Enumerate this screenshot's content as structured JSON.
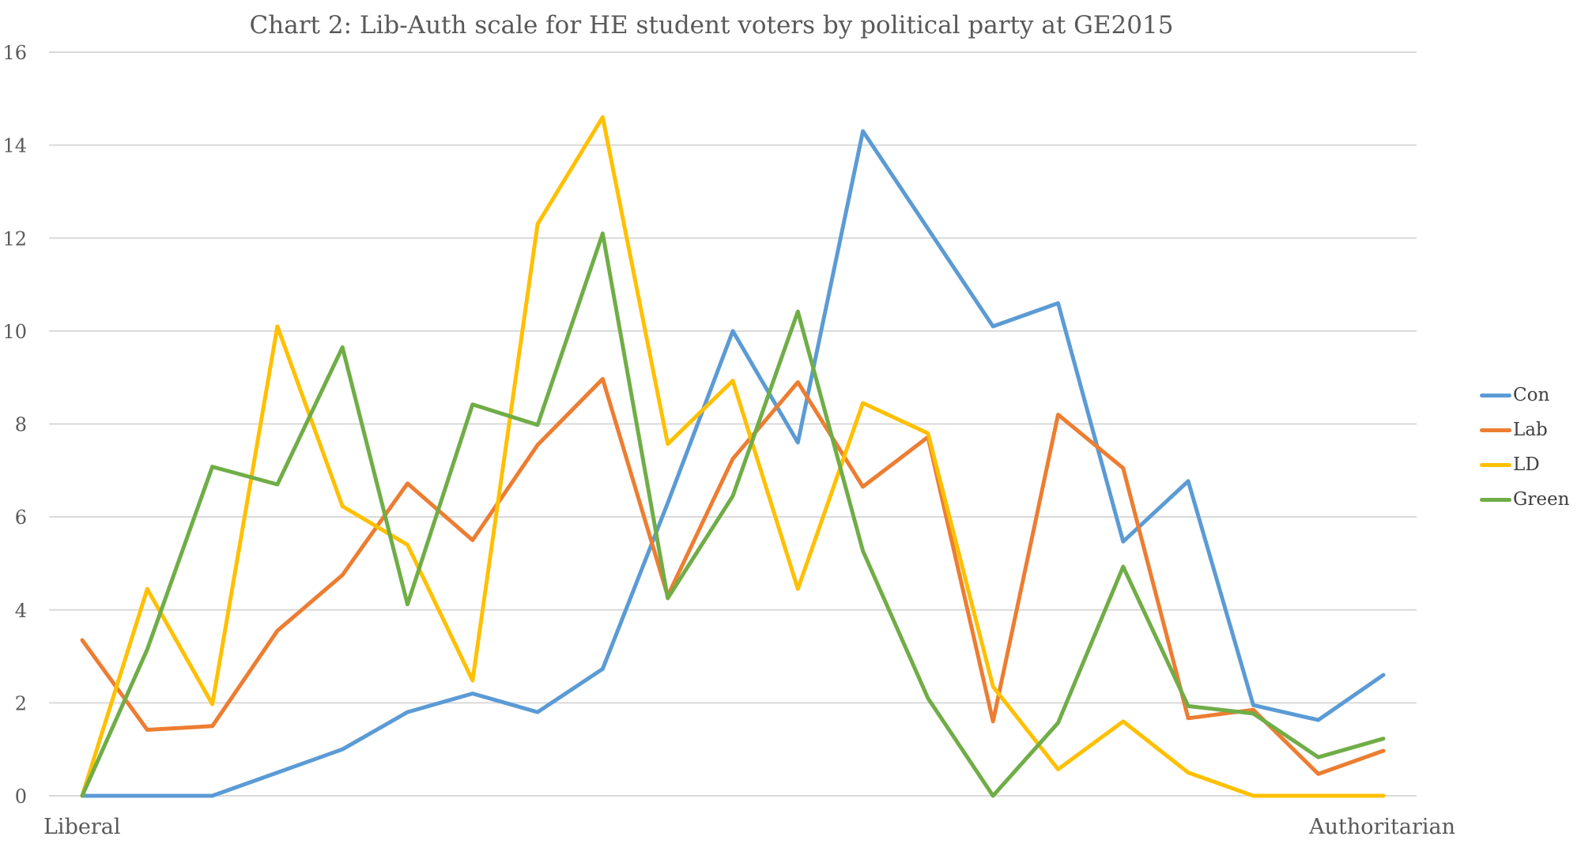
{
  "chart_data": {
    "type": "line",
    "title": "Chart 2: Lib-Auth scale for HE student voters by political party at GE2015",
    "xlabel": "",
    "ylabel": "",
    "x_axis_end_labels": {
      "left": "Liberal",
      "right": "Authoritarian"
    },
    "x": [
      1,
      2,
      3,
      4,
      5,
      6,
      7,
      8,
      9,
      10,
      11,
      12,
      13,
      14,
      15,
      16,
      17,
      18,
      19,
      20,
      21
    ],
    "ylim": [
      0,
      16
    ],
    "yticks": [
      0,
      2,
      4,
      6,
      8,
      10,
      12,
      14,
      16
    ],
    "grid": true,
    "legend_position": "right",
    "series": [
      {
        "name": "Con",
        "color": "#5B9BD5",
        "values": [
          0,
          0,
          0,
          0.5,
          1.0,
          1.8,
          2.2,
          1.8,
          2.73,
          6.3,
          10.0,
          7.6,
          14.3,
          12.2,
          10.1,
          10.6,
          5.47,
          6.77,
          1.95,
          1.63,
          2.6
        ]
      },
      {
        "name": "Lab",
        "color": "#ED7D31",
        "values": [
          3.35,
          1.42,
          1.5,
          3.55,
          4.75,
          6.72,
          5.5,
          7.55,
          8.97,
          4.3,
          7.25,
          8.9,
          6.65,
          7.72,
          1.6,
          8.2,
          7.05,
          1.67,
          1.85,
          0.47,
          0.97
        ]
      },
      {
        "name": "LD",
        "color": "#FFC000",
        "values": [
          0,
          4.45,
          1.97,
          10.1,
          6.23,
          5.4,
          2.48,
          12.3,
          14.6,
          7.57,
          8.93,
          4.45,
          8.45,
          7.8,
          2.35,
          0.57,
          1.6,
          0.5,
          0,
          0,
          0
        ]
      },
      {
        "name": "Green",
        "color": "#70AD47",
        "values": [
          0,
          3.15,
          7.08,
          6.7,
          9.65,
          4.12,
          8.42,
          7.98,
          12.1,
          4.25,
          6.45,
          10.42,
          5.27,
          2.1,
          0,
          1.57,
          4.93,
          1.93,
          1.77,
          0.83,
          1.23
        ]
      }
    ]
  },
  "chart": {
    "title": "Chart 2: Lib-Auth scale for HE student voters by political party at GE2015",
    "y_ticks": [
      "0",
      "2",
      "4",
      "6",
      "8",
      "10",
      "12",
      "14",
      "16"
    ],
    "x_left_label": "Liberal",
    "x_right_label": "Authoritarian",
    "gridline_color": "#D9D9D9"
  },
  "legend": {
    "items": [
      {
        "label": "Con",
        "color": "#5B9BD5"
      },
      {
        "label": "Lab",
        "color": "#ED7D31"
      },
      {
        "label": "LD",
        "color": "#FFC000"
      },
      {
        "label": "Green",
        "color": "#70AD47"
      }
    ]
  }
}
